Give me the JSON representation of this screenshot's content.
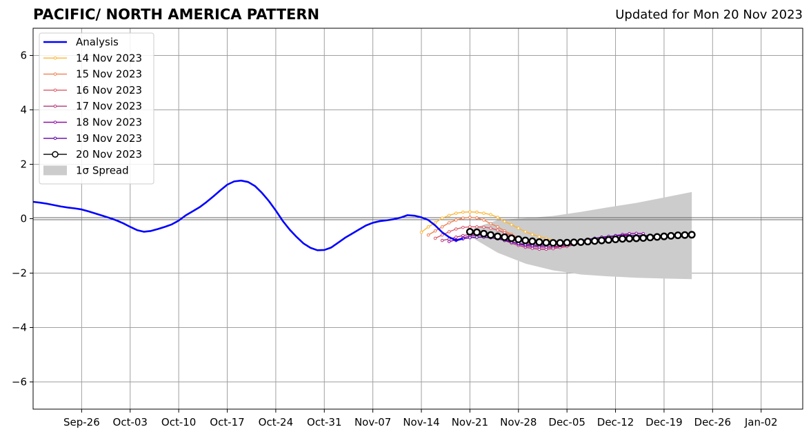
{
  "chart_data": {
    "type": "line",
    "title": "PACIFIC/ NORTH AMERICA PATTERN",
    "subtitle": "Updated for Mon 20 Nov 2023",
    "xlabel": "",
    "ylabel": "",
    "xlim": [
      "2023-09-19",
      "2024-01-08"
    ],
    "ylim": [
      -7,
      7
    ],
    "xticks": [
      "Sep-26",
      "Oct-03",
      "Oct-10",
      "Oct-17",
      "Oct-24",
      "Oct-31",
      "Nov-07",
      "Nov-14",
      "Nov-21",
      "Nov-28",
      "Dec-05",
      "Dec-12",
      "Dec-19",
      "Dec-26",
      "Jan-02"
    ],
    "xtick_dates": [
      "2023-09-26",
      "2023-10-03",
      "2023-10-10",
      "2023-10-17",
      "2023-10-24",
      "2023-10-31",
      "2023-11-07",
      "2023-11-14",
      "2023-11-21",
      "2023-11-28",
      "2023-12-05",
      "2023-12-12",
      "2023-12-19",
      "2023-12-26",
      "2024-01-02"
    ],
    "yticks": [
      6,
      4,
      2,
      0,
      -2,
      -4,
      -6
    ],
    "ytick_labels": [
      "6",
      "4",
      "2",
      "0",
      "−2",
      "−4",
      "−6"
    ],
    "grid": true,
    "legend_position": "top-left",
    "analysis": {
      "name": "Analysis",
      "color": "#0000ff",
      "points": [
        [
          "2023-09-19",
          0.62
        ],
        [
          "2023-09-20",
          0.59
        ],
        [
          "2023-09-21",
          0.55
        ],
        [
          "2023-09-22",
          0.5
        ],
        [
          "2023-09-23",
          0.45
        ],
        [
          "2023-09-24",
          0.41
        ],
        [
          "2023-09-25",
          0.38
        ],
        [
          "2023-09-26",
          0.34
        ],
        [
          "2023-09-27",
          0.27
        ],
        [
          "2023-09-28",
          0.19
        ],
        [
          "2023-09-29",
          0.11
        ],
        [
          "2023-09-30",
          0.03
        ],
        [
          "2023-10-01",
          -0.06
        ],
        [
          "2023-10-02",
          -0.17
        ],
        [
          "2023-10-03",
          -0.3
        ],
        [
          "2023-10-04",
          -0.42
        ],
        [
          "2023-10-05",
          -0.48
        ],
        [
          "2023-10-06",
          -0.45
        ],
        [
          "2023-10-07",
          -0.38
        ],
        [
          "2023-10-08",
          -0.3
        ],
        [
          "2023-10-09",
          -0.21
        ],
        [
          "2023-10-10",
          -0.07
        ],
        [
          "2023-10-11",
          0.12
        ],
        [
          "2023-10-12",
          0.27
        ],
        [
          "2023-10-13",
          0.42
        ],
        [
          "2023-10-14",
          0.61
        ],
        [
          "2023-10-15",
          0.82
        ],
        [
          "2023-10-16",
          1.04
        ],
        [
          "2023-10-17",
          1.25
        ],
        [
          "2023-10-18",
          1.37
        ],
        [
          "2023-10-19",
          1.4
        ],
        [
          "2023-10-20",
          1.35
        ],
        [
          "2023-10-21",
          1.2
        ],
        [
          "2023-10-22",
          0.95
        ],
        [
          "2023-10-23",
          0.65
        ],
        [
          "2023-10-24",
          0.3
        ],
        [
          "2023-10-25",
          -0.08
        ],
        [
          "2023-10-26",
          -0.4
        ],
        [
          "2023-10-27",
          -0.67
        ],
        [
          "2023-10-28",
          -0.91
        ],
        [
          "2023-10-29",
          -1.07
        ],
        [
          "2023-10-30",
          -1.16
        ],
        [
          "2023-10-31",
          -1.15
        ],
        [
          "2023-11-01",
          -1.06
        ],
        [
          "2023-11-02",
          -0.88
        ],
        [
          "2023-11-03",
          -0.7
        ],
        [
          "2023-11-04",
          -0.55
        ],
        [
          "2023-11-05",
          -0.4
        ],
        [
          "2023-11-06",
          -0.25
        ],
        [
          "2023-11-07",
          -0.15
        ],
        [
          "2023-11-08",
          -0.09
        ],
        [
          "2023-11-09",
          -0.06
        ],
        [
          "2023-11-10",
          -0.02
        ],
        [
          "2023-11-11",
          0.04
        ],
        [
          "2023-11-12",
          0.13
        ],
        [
          "2023-11-13",
          0.11
        ],
        [
          "2023-11-14",
          0.05
        ],
        [
          "2023-11-15",
          -0.05
        ],
        [
          "2023-11-16",
          -0.25
        ],
        [
          "2023-11-17",
          -0.5
        ],
        [
          "2023-11-18",
          -0.68
        ],
        [
          "2023-11-19",
          -0.8
        ],
        [
          "2023-11-20",
          -0.73
        ]
      ]
    },
    "forecasts": [
      {
        "name": "14 Nov 2023",
        "color": "#fbb533",
        "start": "2023-11-14",
        "values": [
          -0.5,
          -0.3,
          -0.15,
          0.02,
          0.12,
          0.2,
          0.24,
          0.25,
          0.24,
          0.2,
          0.15,
          0.05,
          -0.1,
          -0.22,
          -0.35,
          -0.48,
          -0.58,
          -0.66,
          -0.73,
          -0.8,
          -0.85
        ]
      },
      {
        "name": "15 Nov 2023",
        "color": "#f07f4d",
        "start": "2023-11-15",
        "values": [
          -0.6,
          -0.45,
          -0.3,
          -0.15,
          -0.05,
          0.02,
          0.05,
          0.03,
          -0.05,
          -0.18,
          -0.3,
          -0.45,
          -0.58,
          -0.7,
          -0.78,
          -0.83,
          -0.86,
          -0.88
        ]
      },
      {
        "name": "16 Nov 2023",
        "color": "#dc5767",
        "start": "2023-11-16",
        "values": [
          -0.72,
          -0.6,
          -0.48,
          -0.38,
          -0.32,
          -0.3,
          -0.3,
          -0.31,
          -0.35,
          -0.42,
          -0.52,
          -0.62,
          -0.75,
          -0.88,
          -0.96,
          -1.01,
          -1.04,
          -1.06,
          -1.04,
          -1.0,
          -0.95,
          -0.9,
          -0.85,
          -0.8
        ]
      },
      {
        "name": "17 Nov 2023",
        "color": "#b5367a",
        "start": "2023-11-17",
        "values": [
          -0.8,
          -0.75,
          -0.68,
          -0.62,
          -0.58,
          -0.56,
          -0.58,
          -0.62,
          -0.7,
          -0.8,
          -0.9,
          -0.98,
          -1.05,
          -1.09,
          -1.12,
          -1.12,
          -1.1,
          -1.06,
          -1.02,
          -0.96,
          -0.9,
          -0.84,
          -0.78,
          -0.73,
          -0.68,
          -0.64,
          -0.6,
          -0.58
        ]
      },
      {
        "name": "18 Nov 2023",
        "color": "#8f0da4",
        "start": "2023-11-18",
        "values": [
          -0.84,
          -0.78,
          -0.7,
          -0.64,
          -0.6,
          -0.6,
          -0.63,
          -0.68,
          -0.76,
          -0.85,
          -0.93,
          -0.99,
          -1.02,
          -1.04,
          -1.04,
          -1.03,
          -1.0,
          -0.96,
          -0.92,
          -0.87,
          -0.82,
          -0.77,
          -0.72,
          -0.67,
          -0.62,
          -0.58,
          -0.55,
          -0.54,
          -0.55
        ]
      },
      {
        "name": "19 Nov 2023",
        "color": "#5c01a6",
        "start": "2023-11-19",
        "values": [
          -0.8,
          -0.74,
          -0.7,
          -0.68,
          -0.68,
          -0.7,
          -0.74,
          -0.8,
          -0.86,
          -0.91,
          -0.95,
          -0.97,
          -0.98,
          -0.97,
          -0.95,
          -0.92,
          -0.88,
          -0.84,
          -0.8,
          -0.76,
          -0.72,
          -0.68,
          -0.65,
          -0.63,
          -0.62,
          -0.62,
          -0.62,
          -0.62,
          -0.62,
          -0.62
        ]
      },
      {
        "name": "20 Nov 2023",
        "color": "#000000",
        "start": "2023-11-21",
        "values": [
          -0.48,
          -0.5,
          -0.55,
          -0.6,
          -0.65,
          -0.68,
          -0.72,
          -0.76,
          -0.8,
          -0.83,
          -0.86,
          -0.88,
          -0.89,
          -0.89,
          -0.88,
          -0.87,
          -0.86,
          -0.84,
          -0.82,
          -0.8,
          -0.78,
          -0.76,
          -0.74,
          -0.73,
          -0.72,
          -0.71,
          -0.69,
          -0.67,
          -0.65,
          -0.63,
          -0.61,
          -0.6,
          -0.59
        ]
      }
    ],
    "spread": {
      "name": "1σ Spread",
      "color": "#cccccc",
      "dates": [
        "2023-11-21",
        "2023-11-25",
        "2023-11-29",
        "2023-12-03",
        "2023-12-07",
        "2023-12-11",
        "2023-12-15",
        "2023-12-19",
        "2023-12-23"
      ],
      "upper": [
        -0.4,
        -0.05,
        0.02,
        0.1,
        0.25,
        0.42,
        0.58,
        0.78,
        0.98
      ],
      "lower": [
        -0.65,
        -1.25,
        -1.65,
        -1.9,
        -2.05,
        -2.12,
        -2.17,
        -2.2,
        -2.22
      ]
    },
    "legend": [
      "Analysis",
      "14 Nov 2023",
      "15 Nov 2023",
      "16 Nov 2023",
      "17 Nov 2023",
      "18 Nov 2023",
      "19 Nov 2023",
      "20 Nov 2023",
      "1σ Spread"
    ]
  }
}
